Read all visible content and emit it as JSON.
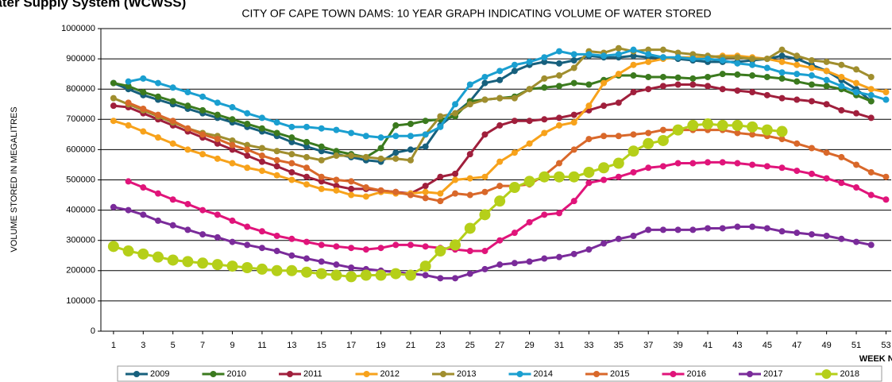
{
  "chart_data": {
    "type": "line",
    "header": "Water Supply System (WCWSS)",
    "title": "CITY OF CAPE TOWN DAMS: 10 YEAR GRAPH INDICATING VOLUME OF WATER STORED",
    "y_label": "VOLUME STORED IN MEGALITRES",
    "x_label": "WEEK NO",
    "x": [
      1,
      2,
      3,
      4,
      5,
      6,
      7,
      8,
      9,
      10,
      11,
      12,
      13,
      14,
      15,
      16,
      17,
      18,
      19,
      20,
      21,
      22,
      23,
      24,
      25,
      26,
      27,
      28,
      29,
      30,
      31,
      32,
      33,
      34,
      35,
      36,
      37,
      38,
      39,
      40,
      41,
      42,
      43,
      44,
      45,
      46,
      47,
      48,
      49,
      50,
      51,
      52,
      53
    ],
    "xlim": [
      0.15,
      53.35
    ],
    "xticks": [
      1,
      3,
      5,
      7,
      9,
      11,
      13,
      15,
      17,
      19,
      21,
      23,
      25,
      27,
      29,
      31,
      33,
      35,
      37,
      39,
      41,
      43,
      45,
      47,
      49,
      51,
      53
    ],
    "ylim": [
      0,
      1000000
    ],
    "yticks": [
      0,
      100000,
      200000,
      300000,
      400000,
      500000,
      600000,
      700000,
      800000,
      900000,
      1000000
    ],
    "grid": true,
    "legend": "bottom",
    "series": [
      {
        "name": "2009",
        "color": "#17607d",
        "values": [
          820000,
          800000,
          780000,
          765000,
          750000,
          735000,
          720000,
          705000,
          690000,
          675000,
          660000,
          645000,
          625000,
          610000,
          595000,
          585000,
          575000,
          565000,
          560000,
          590000,
          600000,
          610000,
          680000,
          720000,
          760000,
          820000,
          830000,
          860000,
          880000,
          890000,
          885000,
          895000,
          910000,
          905000,
          905000,
          910000,
          905000,
          905000,
          900000,
          895000,
          890000,
          890000,
          890000,
          895000,
          900000,
          910000,
          900000,
          880000,
          860000,
          830000,
          800000,
          760000,
          null
        ]
      },
      {
        "name": "2010",
        "color": "#3b7a1e",
        "values": [
          820000,
          810000,
          790000,
          775000,
          760000,
          745000,
          730000,
          715000,
          700000,
          685000,
          670000,
          655000,
          640000,
          625000,
          610000,
          595000,
          585000,
          575000,
          605000,
          680000,
          685000,
          695000,
          700000,
          710000,
          760000,
          765000,
          770000,
          775000,
          800000,
          805000,
          810000,
          820000,
          815000,
          830000,
          845000,
          845000,
          840000,
          840000,
          838000,
          835000,
          840000,
          850000,
          848000,
          845000,
          840000,
          835000,
          825000,
          815000,
          810000,
          800000,
          780000,
          760000,
          null
        ]
      },
      {
        "name": "2011",
        "color": "#a01f3c",
        "values": [
          745000,
          740000,
          720000,
          700000,
          680000,
          660000,
          640000,
          620000,
          600000,
          580000,
          560000,
          545000,
          525000,
          510000,
          495000,
          480000,
          470000,
          470000,
          465000,
          460000,
          455000,
          480000,
          510000,
          520000,
          585000,
          650000,
          680000,
          695000,
          695000,
          700000,
          705000,
          715000,
          730000,
          745000,
          755000,
          790000,
          800000,
          810000,
          815000,
          815000,
          810000,
          800000,
          795000,
          790000,
          780000,
          770000,
          765000,
          760000,
          750000,
          730000,
          720000,
          705000,
          null
        ]
      },
      {
        "name": "2012",
        "color": "#f7a21b",
        "values": [
          695000,
          680000,
          660000,
          640000,
          620000,
          600000,
          585000,
          570000,
          555000,
          540000,
          530000,
          515000,
          500000,
          485000,
          470000,
          465000,
          450000,
          445000,
          460000,
          455000,
          455000,
          460000,
          455000,
          500000,
          505000,
          510000,
          560000,
          590000,
          620000,
          655000,
          680000,
          690000,
          745000,
          820000,
          850000,
          880000,
          890000,
          900000,
          905000,
          905000,
          905000,
          910000,
          910000,
          905000,
          900000,
          890000,
          880000,
          870000,
          860000,
          840000,
          820000,
          800000,
          790000
        ]
      },
      {
        "name": "2013",
        "color": "#a08e2e",
        "values": [
          770000,
          750000,
          730000,
          710000,
          690000,
          670000,
          655000,
          645000,
          630000,
          615000,
          605000,
          595000,
          585000,
          575000,
          565000,
          580000,
          580000,
          575000,
          570000,
          570000,
          565000,
          650000,
          710000,
          720000,
          750000,
          765000,
          770000,
          770000,
          800000,
          835000,
          845000,
          870000,
          925000,
          920000,
          935000,
          925000,
          930000,
          930000,
          920000,
          915000,
          910000,
          905000,
          905000,
          900000,
          900000,
          930000,
          910000,
          895000,
          890000,
          880000,
          865000,
          840000,
          null
        ]
      },
      {
        "name": "2014",
        "color": "#1a9fd0",
        "values": [
          null,
          825000,
          835000,
          820000,
          805000,
          790000,
          775000,
          755000,
          740000,
          720000,
          705000,
          690000,
          675000,
          675000,
          670000,
          665000,
          655000,
          645000,
          640000,
          645000,
          645000,
          650000,
          675000,
          750000,
          815000,
          840000,
          860000,
          880000,
          890000,
          905000,
          925000,
          915000,
          915000,
          910000,
          915000,
          930000,
          915000,
          905000,
          905000,
          900000,
          900000,
          895000,
          885000,
          880000,
          870000,
          855000,
          850000,
          845000,
          830000,
          810000,
          790000,
          780000,
          765000
        ]
      },
      {
        "name": "2015",
        "color": "#d9682a",
        "values": [
          null,
          755000,
          735000,
          715000,
          695000,
          670000,
          650000,
          635000,
          615000,
          600000,
          580000,
          565000,
          555000,
          540000,
          510000,
          500000,
          495000,
          475000,
          465000,
          460000,
          450000,
          440000,
          430000,
          455000,
          450000,
          460000,
          480000,
          480000,
          485000,
          515000,
          555000,
          600000,
          635000,
          645000,
          645000,
          650000,
          655000,
          665000,
          665000,
          665000,
          665000,
          665000,
          655000,
          650000,
          645000,
          635000,
          620000,
          605000,
          590000,
          575000,
          550000,
          525000,
          510000
        ]
      },
      {
        "name": "2016",
        "color": "#e0147a",
        "values": [
          null,
          495000,
          475000,
          455000,
          435000,
          420000,
          400000,
          385000,
          365000,
          345000,
          330000,
          315000,
          305000,
          295000,
          285000,
          280000,
          275000,
          270000,
          275000,
          285000,
          285000,
          280000,
          275000,
          270000,
          265000,
          265000,
          300000,
          325000,
          360000,
          385000,
          390000,
          430000,
          490000,
          500000,
          510000,
          525000,
          540000,
          545000,
          555000,
          555000,
          558000,
          558000,
          555000,
          550000,
          545000,
          540000,
          530000,
          520000,
          505000,
          490000,
          475000,
          450000,
          435000
        ]
      },
      {
        "name": "2017",
        "color": "#7a2b9a",
        "values": [
          410000,
          400000,
          385000,
          365000,
          350000,
          335000,
          320000,
          310000,
          295000,
          285000,
          275000,
          265000,
          250000,
          240000,
          230000,
          220000,
          210000,
          205000,
          200000,
          195000,
          190000,
          185000,
          175000,
          175000,
          190000,
          205000,
          220000,
          225000,
          230000,
          240000,
          245000,
          255000,
          270000,
          290000,
          305000,
          315000,
          335000,
          335000,
          335000,
          335000,
          340000,
          340000,
          345000,
          345000,
          340000,
          330000,
          325000,
          320000,
          315000,
          305000,
          295000,
          285000,
          null
        ]
      },
      {
        "name": "2018",
        "color": "#b5cf19",
        "values": [
          280000,
          265000,
          255000,
          245000,
          235000,
          230000,
          225000,
          220000,
          215000,
          210000,
          205000,
          200000,
          200000,
          195000,
          190000,
          185000,
          180000,
          185000,
          185000,
          190000,
          185000,
          215000,
          265000,
          285000,
          340000,
          385000,
          430000,
          475000,
          495000,
          510000,
          510000,
          510000,
          525000,
          540000,
          555000,
          595000,
          620000,
          630000,
          665000,
          680000,
          685000,
          680000,
          680000,
          675000,
          665000,
          660000,
          null,
          null,
          null,
          null,
          null,
          null,
          null
        ]
      }
    ]
  }
}
